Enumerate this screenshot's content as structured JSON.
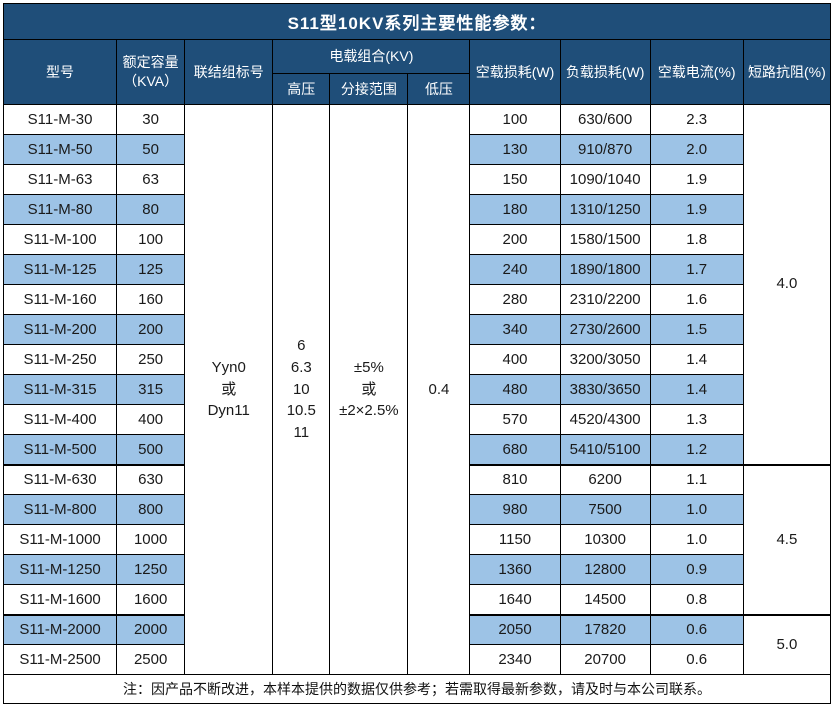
{
  "title": "S11型10KV系列主要性能参数：",
  "note": "注：因产品不断改进，本样本提供的数据仅供参考；若需取得最新参数，请及时与本公司联系。",
  "colors": {
    "header_bg": "#1F4E79",
    "stripe_bg": "#9DC3E6",
    "border": "#000000",
    "header_text": "#ffffff"
  },
  "header": {
    "model": "型号",
    "capacity_line1": "额定容量",
    "capacity_line2": "（KVA）",
    "connection": "联结组标号",
    "load_combo": "电载组合(KV)",
    "hv": "高压",
    "tap_range": "分接范围",
    "lv": "低压",
    "no_load_loss": "空载损耗(W)",
    "load_loss": "负载损耗(W)",
    "no_load_current": "空载电流(%)",
    "impedance": "短路抗阻(%)"
  },
  "merged": {
    "connection": [
      "Yyn0",
      "或",
      "Dyn11"
    ],
    "hv": [
      "6",
      "6.3",
      "10",
      "10.5",
      "11"
    ],
    "tap_range": [
      "±5%",
      "或",
      "±2×2.5%"
    ],
    "lv": "0.4"
  },
  "impedance_groups": [
    {
      "value": "4.0",
      "start": 0,
      "span": 12
    },
    {
      "value": "4.5",
      "start": 12,
      "span": 5
    },
    {
      "value": "5.0",
      "start": 17,
      "span": 2
    }
  ],
  "rows": [
    {
      "model": "S11-M-30",
      "capacity": "30",
      "no_load_loss": "100",
      "load_loss": "630/600",
      "no_load_current": "2.3"
    },
    {
      "model": "S11-M-50",
      "capacity": "50",
      "no_load_loss": "130",
      "load_loss": "910/870",
      "no_load_current": "2.0"
    },
    {
      "model": "S11-M-63",
      "capacity": "63",
      "no_load_loss": "150",
      "load_loss": "1090/1040",
      "no_load_current": "1.9"
    },
    {
      "model": "S11-M-80",
      "capacity": "80",
      "no_load_loss": "180",
      "load_loss": "1310/1250",
      "no_load_current": "1.9"
    },
    {
      "model": "S11-M-100",
      "capacity": "100",
      "no_load_loss": "200",
      "load_loss": "1580/1500",
      "no_load_current": "1.8"
    },
    {
      "model": "S11-M-125",
      "capacity": "125",
      "no_load_loss": "240",
      "load_loss": "1890/1800",
      "no_load_current": "1.7"
    },
    {
      "model": "S11-M-160",
      "capacity": "160",
      "no_load_loss": "280",
      "load_loss": "2310/2200",
      "no_load_current": "1.6"
    },
    {
      "model": "S11-M-200",
      "capacity": "200",
      "no_load_loss": "340",
      "load_loss": "2730/2600",
      "no_load_current": "1.5"
    },
    {
      "model": "S11-M-250",
      "capacity": "250",
      "no_load_loss": "400",
      "load_loss": "3200/3050",
      "no_load_current": "1.4"
    },
    {
      "model": "S11-M-315",
      "capacity": "315",
      "no_load_loss": "480",
      "load_loss": "3830/3650",
      "no_load_current": "1.4"
    },
    {
      "model": "S11-M-400",
      "capacity": "400",
      "no_load_loss": "570",
      "load_loss": "4520/4300",
      "no_load_current": "1.3"
    },
    {
      "model": "S11-M-500",
      "capacity": "500",
      "no_load_loss": "680",
      "load_loss": "5410/5100",
      "no_load_current": "1.2"
    },
    {
      "model": "S11-M-630",
      "capacity": "630",
      "no_load_loss": "810",
      "load_loss": "6200",
      "no_load_current": "1.1"
    },
    {
      "model": "S11-M-800",
      "capacity": "800",
      "no_load_loss": "980",
      "load_loss": "7500",
      "no_load_current": "1.0"
    },
    {
      "model": "S11-M-1000",
      "capacity": "1000",
      "no_load_loss": "1150",
      "load_loss": "10300",
      "no_load_current": "1.0"
    },
    {
      "model": "S11-M-1250",
      "capacity": "1250",
      "no_load_loss": "1360",
      "load_loss": "12800",
      "no_load_current": "0.9"
    },
    {
      "model": "S11-M-1600",
      "capacity": "1600",
      "no_load_loss": "1640",
      "load_loss": "14500",
      "no_load_current": "0.8"
    },
    {
      "model": "S11-M-2000",
      "capacity": "2000",
      "no_load_loss": "2050",
      "load_loss": "17820",
      "no_load_current": "0.6"
    },
    {
      "model": "S11-M-2500",
      "capacity": "2500",
      "no_load_loss": "2340",
      "load_loss": "20700",
      "no_load_current": "0.6"
    }
  ]
}
